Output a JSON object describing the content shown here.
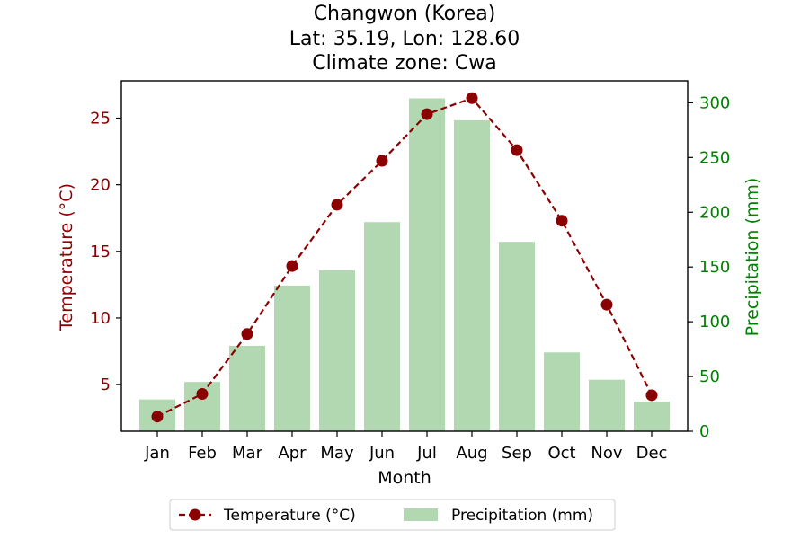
{
  "chart_data": {
    "type": "bar+line",
    "title_lines": [
      "Changwon (Korea)",
      "Lat: 35.19, Lon: 128.60",
      "Climate zone: Cwa"
    ],
    "xlabel": "Month",
    "categories": [
      "Jan",
      "Feb",
      "Mar",
      "Apr",
      "May",
      "Jun",
      "Jul",
      "Aug",
      "Sep",
      "Oct",
      "Nov",
      "Dec"
    ],
    "temperature": {
      "name": "Temperature (°C)",
      "axis_label": "Temperature (°C)",
      "values": [
        2.6,
        4.3,
        8.8,
        13.9,
        18.5,
        21.8,
        25.3,
        26.5,
        22.6,
        17.3,
        11.0,
        4.2
      ],
      "ylim": [
        1.5,
        27.8
      ],
      "ticks": [
        5,
        10,
        15,
        20,
        25
      ],
      "color": "#8b0000",
      "style": "dashed line with circle markers"
    },
    "precipitation": {
      "name": "Precipitation (mm)",
      "axis_label": "Precipitation (mm)",
      "values": [
        29,
        45,
        78,
        133,
        147,
        191,
        304,
        284,
        173,
        72,
        47,
        27
      ],
      "ylim": [
        0,
        320
      ],
      "ticks": [
        0,
        50,
        100,
        150,
        200,
        250,
        300
      ],
      "color": "#b2d8b2",
      "tick_color": "#008000"
    },
    "legend": {
      "placement": "bottom-center",
      "entries": [
        "Temperature (°C)",
        "Precipitation (mm)"
      ]
    },
    "grid": false
  }
}
